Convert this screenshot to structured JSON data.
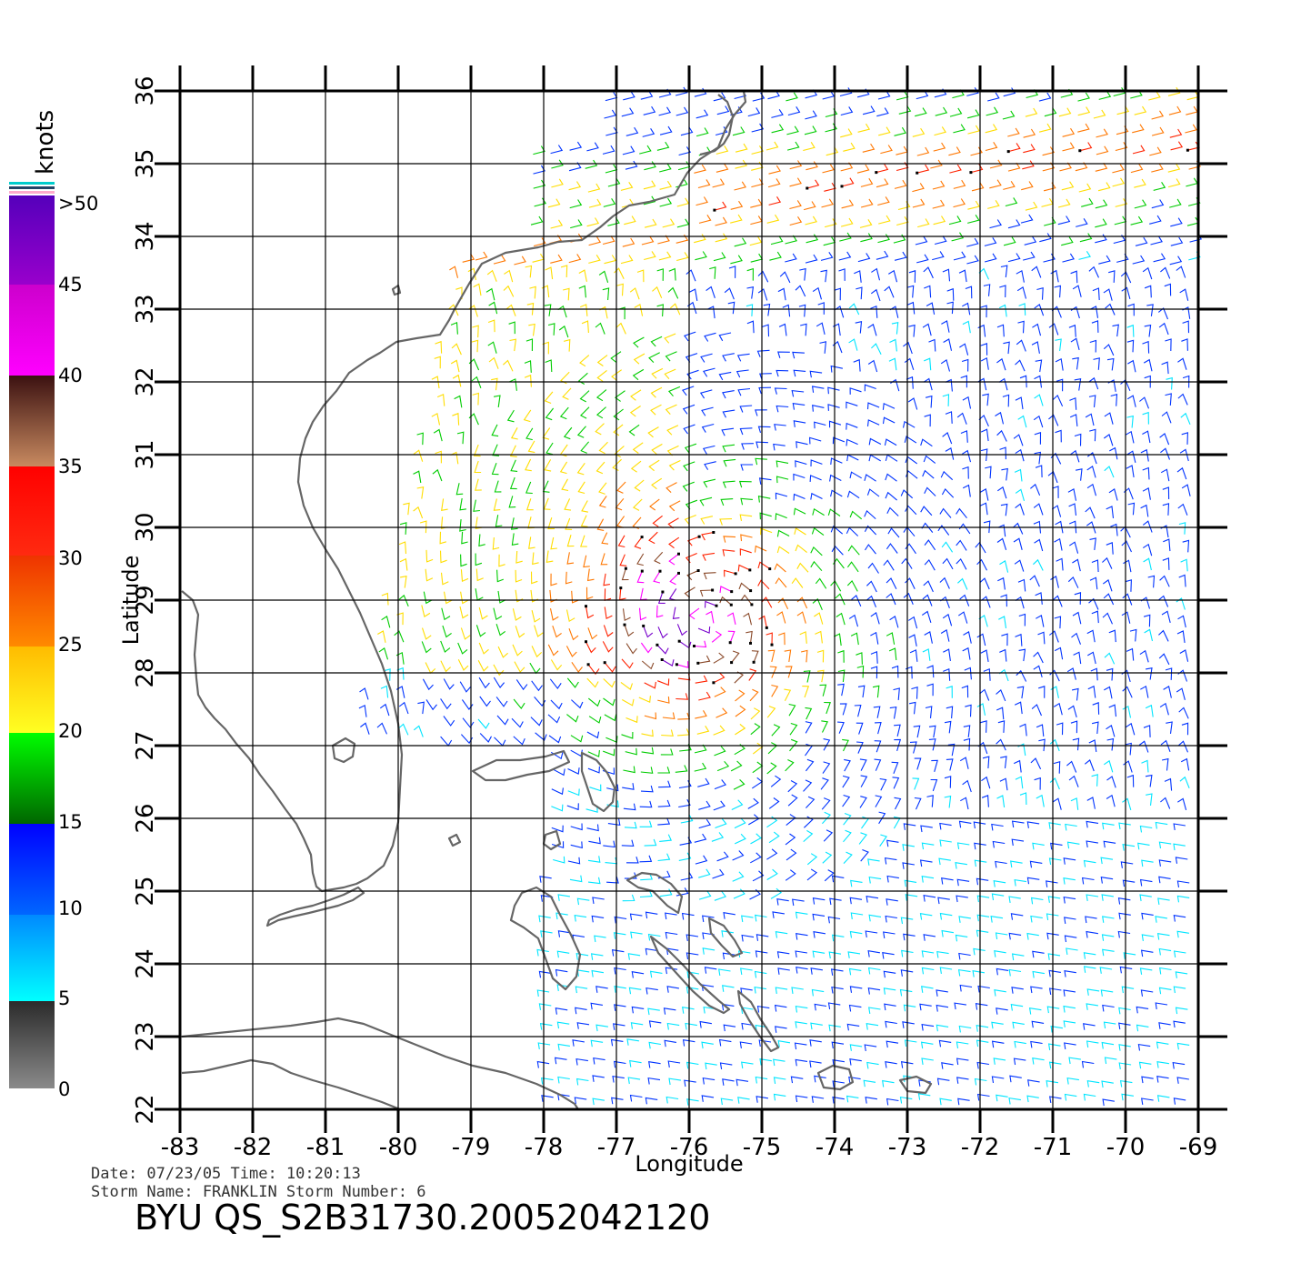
{
  "map": {
    "xlabel": "Longitude",
    "ylabel": "Latitude",
    "lon_ticks": [
      "-83",
      "-82",
      "-81",
      "-80",
      "-79",
      "-78",
      "-77",
      "-76",
      "-75",
      "-74",
      "-73",
      "-72",
      "-71",
      "-70",
      "-69"
    ],
    "lat_ticks": [
      "22",
      "23",
      "24",
      "25",
      "26",
      "27",
      "28",
      "29",
      "30",
      "31",
      "32",
      "33",
      "34",
      "35",
      "36"
    ],
    "lon_range": [
      -83,
      -69
    ],
    "lat_range": [
      22,
      36
    ],
    "grid": true,
    "land_color": "#ffffff",
    "coast_color": "#666666"
  },
  "colorbar": {
    "unit": "knots",
    "labels": [
      "0",
      "5",
      "10",
      "15",
      "20",
      "25",
      "30",
      "35",
      "40",
      "45",
      ">50"
    ],
    "colors": {
      "0_5": "#7a7a7a",
      "5_10": "#00e5ff",
      "10_15": "#0033ff",
      "15_20": "#00cc00",
      "20_25": "#ffdd00",
      "25_30": "#ff7700",
      "30_35": "#ff2200",
      "35_40": "#8a4a2a",
      "40_45": "#ff00ff",
      "45_50": "#7700cc"
    }
  },
  "footer": {
    "date_line": "Date: 07/23/05   Time: 10:20:13",
    "storm_line": "Storm  Name: FRANKLIN   Storm  Number: 6",
    "product_id": "BYU  QS_S2B31730.20052042120"
  }
}
